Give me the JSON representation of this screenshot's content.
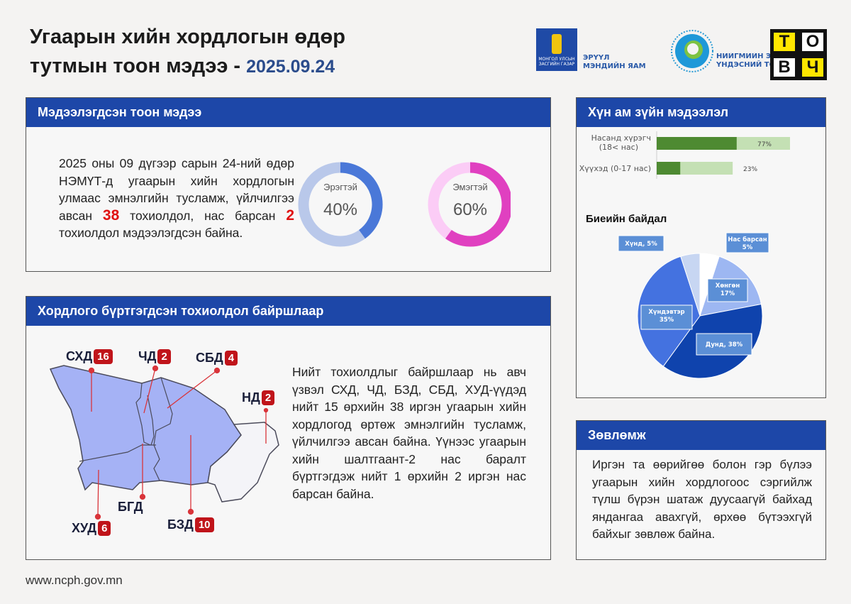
{
  "header": {
    "title_line1": "Угаарын хийн хордлогын өдөр",
    "title_line2": "тутмын тоон мэдээ -",
    "date": "2025.09.24"
  },
  "logos": {
    "gov_small": "МОНГОЛ УЛСЫН ЗАСГИЙН ГАЗАР",
    "ministry": "ЭРҮҮЛ МЭНДИЙН ЯАМ",
    "ncph_line1": "НИЙГМИЙН ЭРҮҮЛ МЭНДИЙН",
    "ncph_line2": "ҮНДЭСНИЙ ТӨВ",
    "tovch": [
      "Т",
      "О",
      "В",
      "Ч"
    ]
  },
  "reported": {
    "heading": "Мэдээлэгдсэн тоон мэдээ",
    "text_a": "2025 оны 09 дүгээр сарын 24-ний өдөр НЭМҮТ-д угаарын хийн хордлогын улмаас эмнэлгийн тусламж, үйлчилгээ авсан ",
    "cases": "38",
    "text_b": " тохиолдол, нас барсан ",
    "deaths": "2",
    "text_c": " тохиолдол мэдээлэгдсэн байна."
  },
  "location": {
    "heading": "Хордлого бүртгэгдсэн тохиолдол байршлаар",
    "text": "Нийт тохиолдлыг байршлаар нь авч үзвэл СХД, ЧД, БЗД, СБД, ХУД-үүдэд нийт 15 өрхийн 38 иргэн угаарын хийн хордлогод өртөж эмнэлгийн тусламж, үйлчилгээ авсан байна. Үүнээс угаарын хийн шалтгаант-2 нас баралт бүртгэгдэж нийт 1 өрхийн 2 иргэн нас барсан байна.",
    "districts": [
      {
        "name": "СХД",
        "count": "16"
      },
      {
        "name": "ЧД",
        "count": "2"
      },
      {
        "name": "СБД",
        "count": "4"
      },
      {
        "name": "НД",
        "count": "2"
      },
      {
        "name": "БГД",
        "count": ""
      },
      {
        "name": "ХУД",
        "count": "6"
      },
      {
        "name": "БЗД",
        "count": "10"
      }
    ]
  },
  "population": {
    "heading": "Хүн ам зүйн мэдээлэл"
  },
  "advice": {
    "heading": "Зөвлөмж",
    "text": "Иргэн та өөрийгөө болон гэр бүлээ угаарын хийн хордлогоос сэргийлж түлш бүрэн шатаж дуусаагүй байхад яндангаа авахгүй, өрхөө бүтээхгүй байхыг зөвлөж байна."
  },
  "footer": {
    "url": "www.ncph.gov.mn"
  },
  "chart_data": [
    {
      "type": "pie",
      "title": "",
      "series": [
        {
          "name": "Эрэгтэй",
          "value": 40,
          "label": "40%",
          "color": "#4a78d8",
          "rest_color": "#b9c8ea"
        }
      ]
    },
    {
      "type": "pie",
      "title": "",
      "series": [
        {
          "name": "Эмэгтэй",
          "value": 60,
          "label": "60%",
          "color": "#e040c0",
          "rest_color": "#fbccf6"
        }
      ]
    },
    {
      "type": "bar",
      "orientation": "horizontal",
      "categories": [
        "Насанд хүрэгч (18< нас)",
        "Хүүхэд (0-17 нас)"
      ],
      "values": [
        77,
        23
      ],
      "labels": [
        "77%",
        "23%"
      ],
      "colors": {
        "dark": "#4e8a32",
        "light": "#c4e0b4"
      }
    },
    {
      "type": "pie",
      "title": "Биеийн байдал",
      "slices": [
        {
          "name": "Нас барсан",
          "value": 5,
          "label": "Нас барсан 5%",
          "color": "#ffffff"
        },
        {
          "name": "Хөнгөн",
          "value": 17,
          "label": "Хөнгөн 17%",
          "color": "#9db7f2"
        },
        {
          "name": "Дунд",
          "value": 38,
          "label": "Дунд, 38%",
          "color": "#0f43ad"
        },
        {
          "name": "Хүндэвтэр",
          "value": 35,
          "label": "Хүндэвтэр 35%",
          "color": "#4472e0"
        },
        {
          "name": "Хүнд",
          "value": 5,
          "label": "Хүнд, 5%",
          "color": "#c7d6f2"
        }
      ]
    }
  ]
}
